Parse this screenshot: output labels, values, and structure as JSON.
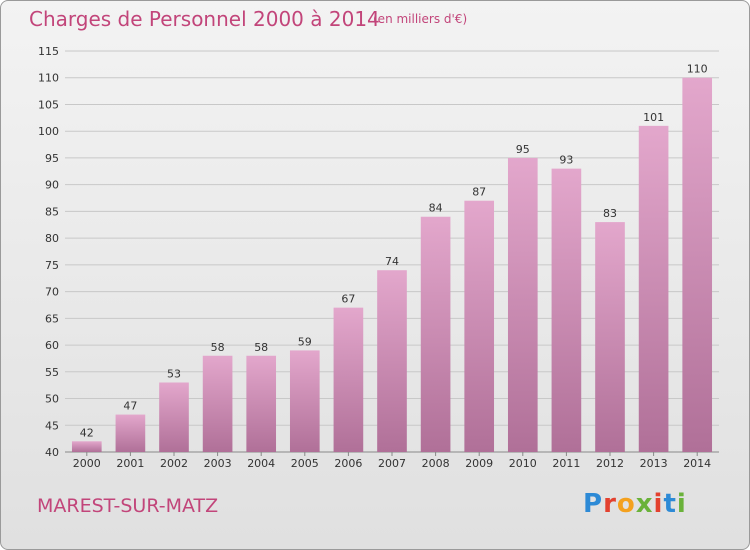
{
  "header": {
    "title": "Charges de Personnel 2000 à 2014",
    "subtitle": "(en milliers d'€)"
  },
  "footer": {
    "commune": "MAREST-SUR-MATZ",
    "brand": "Proxiti",
    "brand_colors": [
      "#2d8ad6",
      "#e3412f",
      "#f4a11e",
      "#6ab23a",
      "#e3412f",
      "#2d8ad6",
      "#6ab23a"
    ]
  },
  "colors": {
    "accent": "#c2457a",
    "bar_top": "#e3a7cc",
    "bar_bottom": "#b07098",
    "grid": "#c8c8c8",
    "axis_text": "#333333"
  },
  "chart_data": {
    "type": "bar",
    "categories": [
      "2000",
      "2001",
      "2002",
      "2003",
      "2004",
      "2005",
      "2006",
      "2007",
      "2008",
      "2009",
      "2010",
      "2011",
      "2012",
      "2013",
      "2014"
    ],
    "values": [
      42,
      47,
      53,
      58,
      58,
      59,
      67,
      74,
      84,
      87,
      95,
      93,
      83,
      101,
      110
    ],
    "title": "Charges de Personnel 2000 à 2014",
    "subtitle": "(en milliers d'€)",
    "xlabel": "",
    "ylabel": "",
    "ylim": [
      40,
      115
    ],
    "yticks": [
      40,
      45,
      50,
      55,
      60,
      65,
      70,
      75,
      80,
      85,
      90,
      95,
      100,
      105,
      110,
      115
    ],
    "grid": true,
    "data_labels": true
  }
}
